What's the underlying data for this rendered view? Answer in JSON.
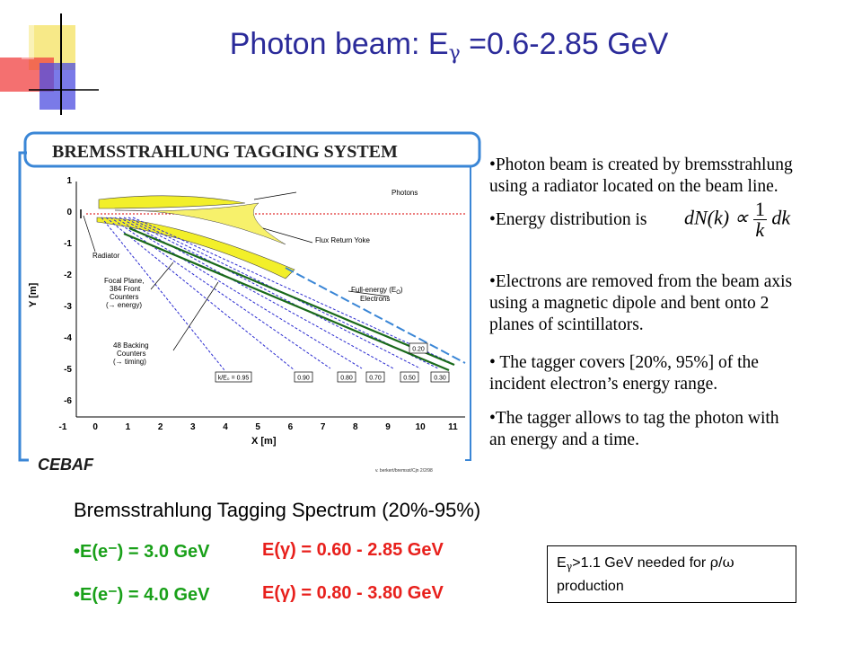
{
  "title": {
    "prefix": "Photon beam: E",
    "sub": "γ",
    "suffix": " =0.6-2.85 GeV"
  },
  "figure": {
    "banner": "BREMSSTRAHLUNG TAGGING SYSTEM",
    "y_axis_label": "Y [m]",
    "x_axis_label": "X [m]",
    "y_ticks": [
      "1",
      "0",
      "-1",
      "-2",
      "-3",
      "-4",
      "-5",
      "-6"
    ],
    "x_ticks": [
      "-1",
      "0",
      "1",
      "2",
      "3",
      "4",
      "5",
      "6",
      "7",
      "8",
      "9",
      "10",
      "11"
    ],
    "labels": {
      "photons": "Photons",
      "flux_return_yoke": "Flux Return Yoke",
      "radiator": "Radiator",
      "full_energy_1": "Full-energy (E",
      "full_energy_sub": "O",
      "full_energy_2": ")",
      "electrons": "Electrons",
      "focal_plane_1": "Focal Plane,",
      "focal_plane_2": "384 Front",
      "focal_plane_3": "Counters",
      "focal_plane_4": "(→ energy)",
      "backing_1": "48 Backing",
      "backing_2": "Counters",
      "backing_3": "(→ timing)"
    },
    "boxes": [
      "k/E₀ = 0.95",
      "0.90",
      "0.80",
      "0.70",
      "0.50",
      "0.30",
      "0.20"
    ],
    "cebaf_logo": "CEBAF",
    "credit": "v. berkert/bremsst/Cjn 2/2/98"
  },
  "bullets": [
    {
      "lines": [
        "•Photon beam is created by bremsstrahlung",
        "using a radiator located on the beam line."
      ]
    },
    {
      "lines": [
        "•Energy distribution is"
      ]
    },
    {
      "lines": [
        "•Electrons are removed from the beam axis",
        "using a magnetic dipole and bent onto 2",
        "planes of scintillators."
      ]
    },
    {
      "lines": [
        "• The tagger covers [20%, 95%] of the",
        "incident electron’s energy range."
      ]
    },
    {
      "lines": [
        "•The tagger allows to tag the photon with",
        "an energy and a time."
      ]
    }
  ],
  "formula": {
    "lhs": "dN(k) ∝",
    "num": "1",
    "den": "k",
    "rhs": "dk"
  },
  "spectrum": {
    "title": "Bremsstrahlung Tagging Spectrum (20%-95%)",
    "rows": [
      {
        "electron": "•E(e⁻) = 3.0 GeV",
        "photon": "E(γ) = 0.60 - 2.85 GeV"
      },
      {
        "electron": "•E(e⁻) = 4.0 GeV",
        "photon": "E(γ) = 0.80 - 3.80 GeV"
      }
    ]
  },
  "note": {
    "e": "E",
    "sub": "γ",
    "rest1": ">1.1 GeV needed for ",
    "rho": "ρ",
    "slash": "/",
    "omega": "ω",
    "rest2": "production"
  }
}
